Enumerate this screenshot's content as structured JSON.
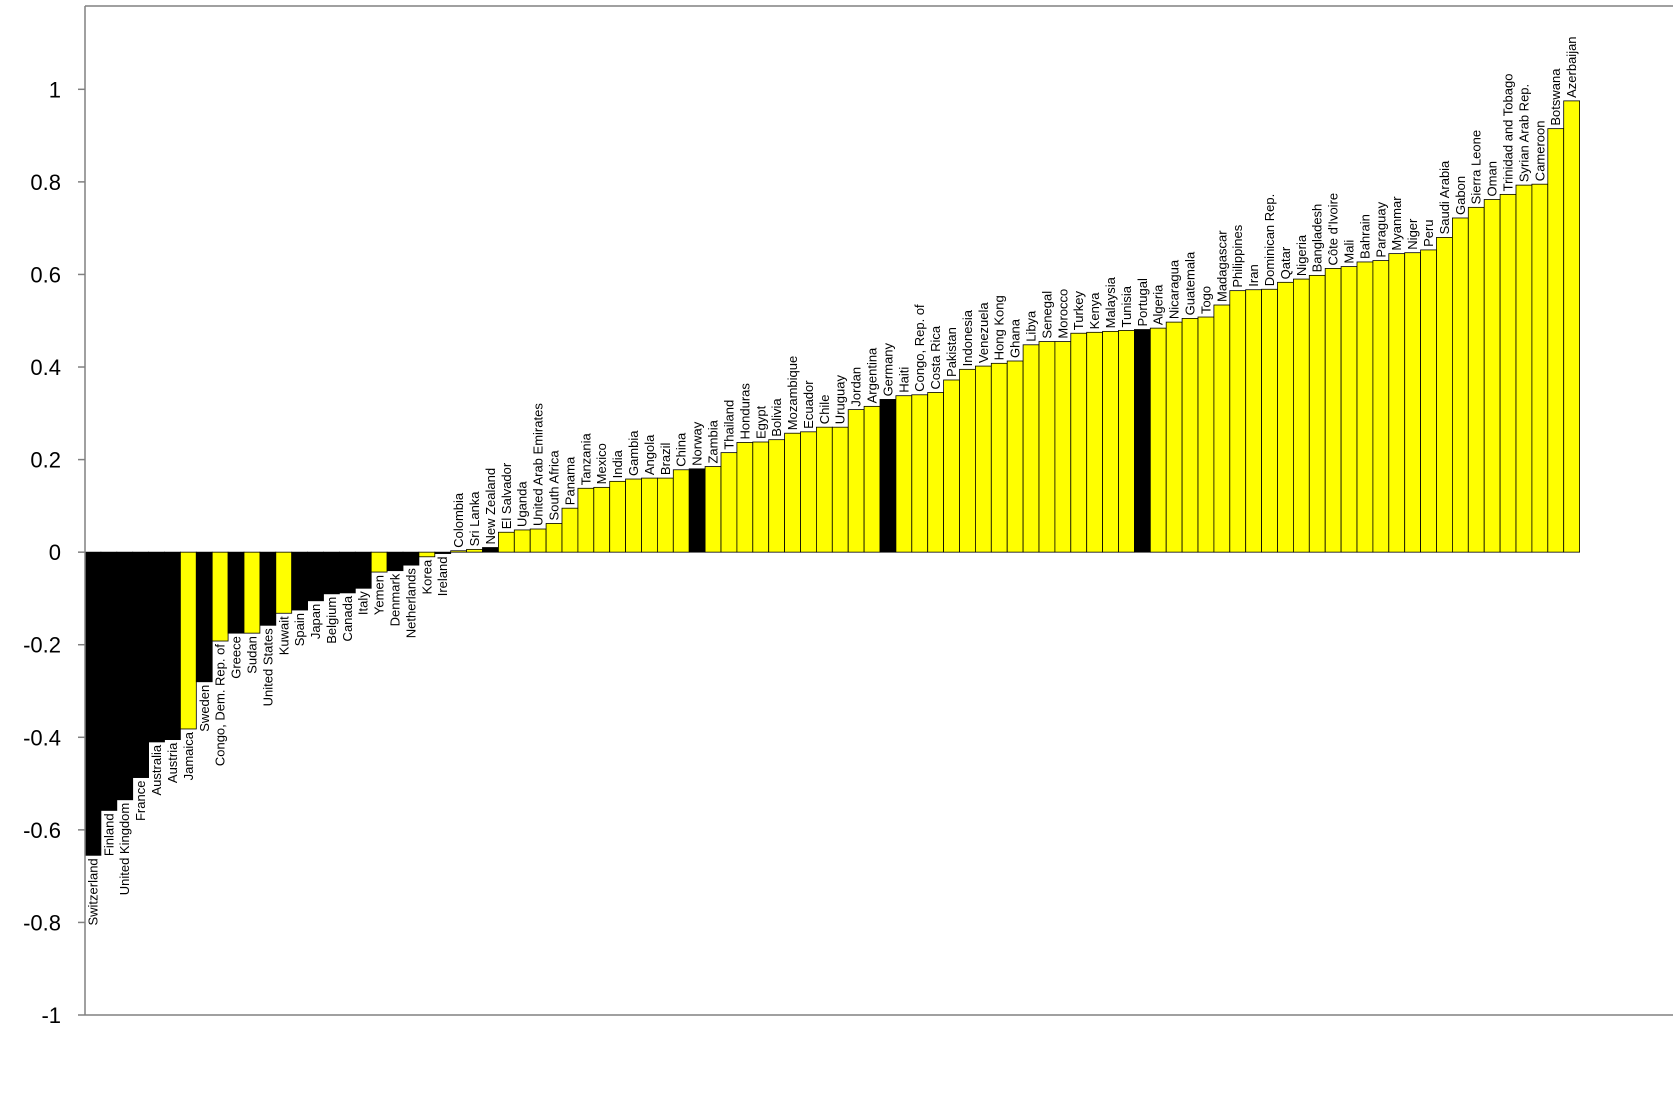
{
  "chart_data": {
    "type": "bar",
    "title": "",
    "xlabel": "",
    "ylabel": "",
    "ylim": [
      -1,
      1.18
    ],
    "yticks": [
      -1,
      -0.8,
      -0.6,
      -0.4,
      -0.2,
      0,
      0.2,
      0.4,
      0.6,
      0.8,
      1
    ],
    "ytick_labels": [
      "-1",
      "-0.8",
      "-0.6",
      "-0.4",
      "-0.2",
      "0",
      "0.2",
      "0.4",
      "0.6",
      "0.8",
      "1"
    ],
    "grid": false,
    "legend": "none",
    "colors": {
      "highlight": "#FFFF00",
      "default": "#000000",
      "stroke": "#000000",
      "axis": "#808080"
    },
    "bars": [
      {
        "name": "Switzerland",
        "value": -0.655,
        "color": "black"
      },
      {
        "name": "Finland",
        "value": -0.558,
        "color": "black"
      },
      {
        "name": "United Kingdom",
        "value": -0.535,
        "color": "black"
      },
      {
        "name": "France",
        "value": -0.487,
        "color": "black"
      },
      {
        "name": "Australia",
        "value": -0.41,
        "color": "black"
      },
      {
        "name": "Austria",
        "value": -0.405,
        "color": "black"
      },
      {
        "name": "Jamaica",
        "value": -0.382,
        "color": "yellow"
      },
      {
        "name": "Sweden",
        "value": -0.28,
        "color": "black"
      },
      {
        "name": "Congo, Dem. Rep. of",
        "value": -0.192,
        "color": "yellow"
      },
      {
        "name": "Greece",
        "value": -0.175,
        "color": "black"
      },
      {
        "name": "Sudan",
        "value": -0.175,
        "color": "yellow"
      },
      {
        "name": "United States",
        "value": -0.158,
        "color": "black"
      },
      {
        "name": "Kuwait",
        "value": -0.132,
        "color": "yellow"
      },
      {
        "name": "Spain",
        "value": -0.125,
        "color": "black"
      },
      {
        "name": "Japan",
        "value": -0.105,
        "color": "black"
      },
      {
        "name": "Belgium",
        "value": -0.09,
        "color": "black"
      },
      {
        "name": "Canada",
        "value": -0.088,
        "color": "black"
      },
      {
        "name": "Italy",
        "value": -0.078,
        "color": "black"
      },
      {
        "name": "Yemen",
        "value": -0.043,
        "color": "yellow"
      },
      {
        "name": "Denmark",
        "value": -0.04,
        "color": "black"
      },
      {
        "name": "Netherlands",
        "value": -0.028,
        "color": "black"
      },
      {
        "name": "Korea",
        "value": -0.01,
        "color": "yellow"
      },
      {
        "name": "Ireland",
        "value": -0.003,
        "color": "black"
      },
      {
        "name": "Colombia",
        "value": 0.003,
        "color": "yellow"
      },
      {
        "name": "Sri Lanka",
        "value": 0.006,
        "color": "yellow"
      },
      {
        "name": "New Zealand",
        "value": 0.01,
        "color": "black"
      },
      {
        "name": "El Salvador",
        "value": 0.043,
        "color": "yellow"
      },
      {
        "name": "Uganda",
        "value": 0.048,
        "color": "yellow"
      },
      {
        "name": "United Arab Emirates",
        "value": 0.05,
        "color": "yellow"
      },
      {
        "name": "South Africa",
        "value": 0.062,
        "color": "yellow"
      },
      {
        "name": "Panama",
        "value": 0.095,
        "color": "yellow"
      },
      {
        "name": "Tanzania",
        "value": 0.138,
        "color": "yellow"
      },
      {
        "name": "Mexico",
        "value": 0.14,
        "color": "yellow"
      },
      {
        "name": "India",
        "value": 0.153,
        "color": "yellow"
      },
      {
        "name": "Gambia",
        "value": 0.158,
        "color": "yellow"
      },
      {
        "name": "Angola",
        "value": 0.16,
        "color": "yellow"
      },
      {
        "name": "Brazil",
        "value": 0.16,
        "color": "yellow"
      },
      {
        "name": "China",
        "value": 0.178,
        "color": "yellow"
      },
      {
        "name": "Norway",
        "value": 0.18,
        "color": "black"
      },
      {
        "name": "Zambia",
        "value": 0.185,
        "color": "yellow"
      },
      {
        "name": "Thailand",
        "value": 0.215,
        "color": "yellow"
      },
      {
        "name": "Honduras",
        "value": 0.237,
        "color": "yellow"
      },
      {
        "name": "Egypt",
        "value": 0.238,
        "color": "yellow"
      },
      {
        "name": "Bolivia",
        "value": 0.243,
        "color": "yellow"
      },
      {
        "name": "Mozambique",
        "value": 0.257,
        "color": "yellow"
      },
      {
        "name": "Ecuador",
        "value": 0.26,
        "color": "yellow"
      },
      {
        "name": "Chile",
        "value": 0.27,
        "color": "yellow"
      },
      {
        "name": "Uruguay",
        "value": 0.27,
        "color": "yellow"
      },
      {
        "name": "Jordan",
        "value": 0.308,
        "color": "yellow"
      },
      {
        "name": "Argentina",
        "value": 0.315,
        "color": "yellow"
      },
      {
        "name": "Germany",
        "value": 0.33,
        "color": "black"
      },
      {
        "name": "Haiti",
        "value": 0.338,
        "color": "yellow"
      },
      {
        "name": "Congo, Rep. of",
        "value": 0.34,
        "color": "yellow"
      },
      {
        "name": "Costa Rica",
        "value": 0.345,
        "color": "yellow"
      },
      {
        "name": "Pakistan",
        "value": 0.372,
        "color": "yellow"
      },
      {
        "name": "Indonesia",
        "value": 0.395,
        "color": "yellow"
      },
      {
        "name": "Venezuela",
        "value": 0.402,
        "color": "yellow"
      },
      {
        "name": "Hong Kong",
        "value": 0.408,
        "color": "yellow"
      },
      {
        "name": "Ghana",
        "value": 0.413,
        "color": "yellow"
      },
      {
        "name": "Libya",
        "value": 0.448,
        "color": "yellow"
      },
      {
        "name": "Senegal",
        "value": 0.455,
        "color": "yellow"
      },
      {
        "name": "Morocco",
        "value": 0.455,
        "color": "yellow"
      },
      {
        "name": "Turkey",
        "value": 0.473,
        "color": "yellow"
      },
      {
        "name": "Kenya",
        "value": 0.475,
        "color": "yellow"
      },
      {
        "name": "Malaysia",
        "value": 0.477,
        "color": "yellow"
      },
      {
        "name": "Tunisia",
        "value": 0.479,
        "color": "yellow"
      },
      {
        "name": "Portugal",
        "value": 0.481,
        "color": "black"
      },
      {
        "name": "Algeria",
        "value": 0.484,
        "color": "yellow"
      },
      {
        "name": "Nicaragua",
        "value": 0.497,
        "color": "yellow"
      },
      {
        "name": "Guatemala",
        "value": 0.505,
        "color": "yellow"
      },
      {
        "name": "Togo",
        "value": 0.508,
        "color": "yellow"
      },
      {
        "name": "Madagascar",
        "value": 0.534,
        "color": "yellow"
      },
      {
        "name": "Philippines",
        "value": 0.565,
        "color": "yellow"
      },
      {
        "name": "Iran",
        "value": 0.567,
        "color": "yellow"
      },
      {
        "name": "Dominican Rep.",
        "value": 0.568,
        "color": "yellow"
      },
      {
        "name": "Qatar",
        "value": 0.583,
        "color": "yellow"
      },
      {
        "name": "Nigeria",
        "value": 0.59,
        "color": "yellow"
      },
      {
        "name": "Bangladesh",
        "value": 0.598,
        "color": "yellow"
      },
      {
        "name": "Côte d'Ivoire",
        "value": 0.613,
        "color": "yellow"
      },
      {
        "name": "Mali",
        "value": 0.617,
        "color": "yellow"
      },
      {
        "name": "Bahrain",
        "value": 0.627,
        "color": "yellow"
      },
      {
        "name": "Paraguay",
        "value": 0.63,
        "color": "yellow"
      },
      {
        "name": "Myanmar",
        "value": 0.645,
        "color": "yellow"
      },
      {
        "name": "Niger",
        "value": 0.647,
        "color": "yellow"
      },
      {
        "name": "Peru",
        "value": 0.653,
        "color": "yellow"
      },
      {
        "name": "Saudi Arabia",
        "value": 0.68,
        "color": "yellow"
      },
      {
        "name": "Gabon",
        "value": 0.722,
        "color": "yellow"
      },
      {
        "name": "Sierra Leone",
        "value": 0.745,
        "color": "yellow"
      },
      {
        "name": "Oman",
        "value": 0.762,
        "color": "yellow"
      },
      {
        "name": "Trinidad and Tobago",
        "value": 0.773,
        "color": "yellow"
      },
      {
        "name": "Syrian Arab Rep.",
        "value": 0.793,
        "color": "yellow"
      },
      {
        "name": "Cameroon",
        "value": 0.795,
        "color": "yellow"
      },
      {
        "name": "Botswana",
        "value": 0.915,
        "color": "yellow"
      },
      {
        "name": "Azerbaijan",
        "value": 0.975,
        "color": "yellow"
      }
    ]
  }
}
